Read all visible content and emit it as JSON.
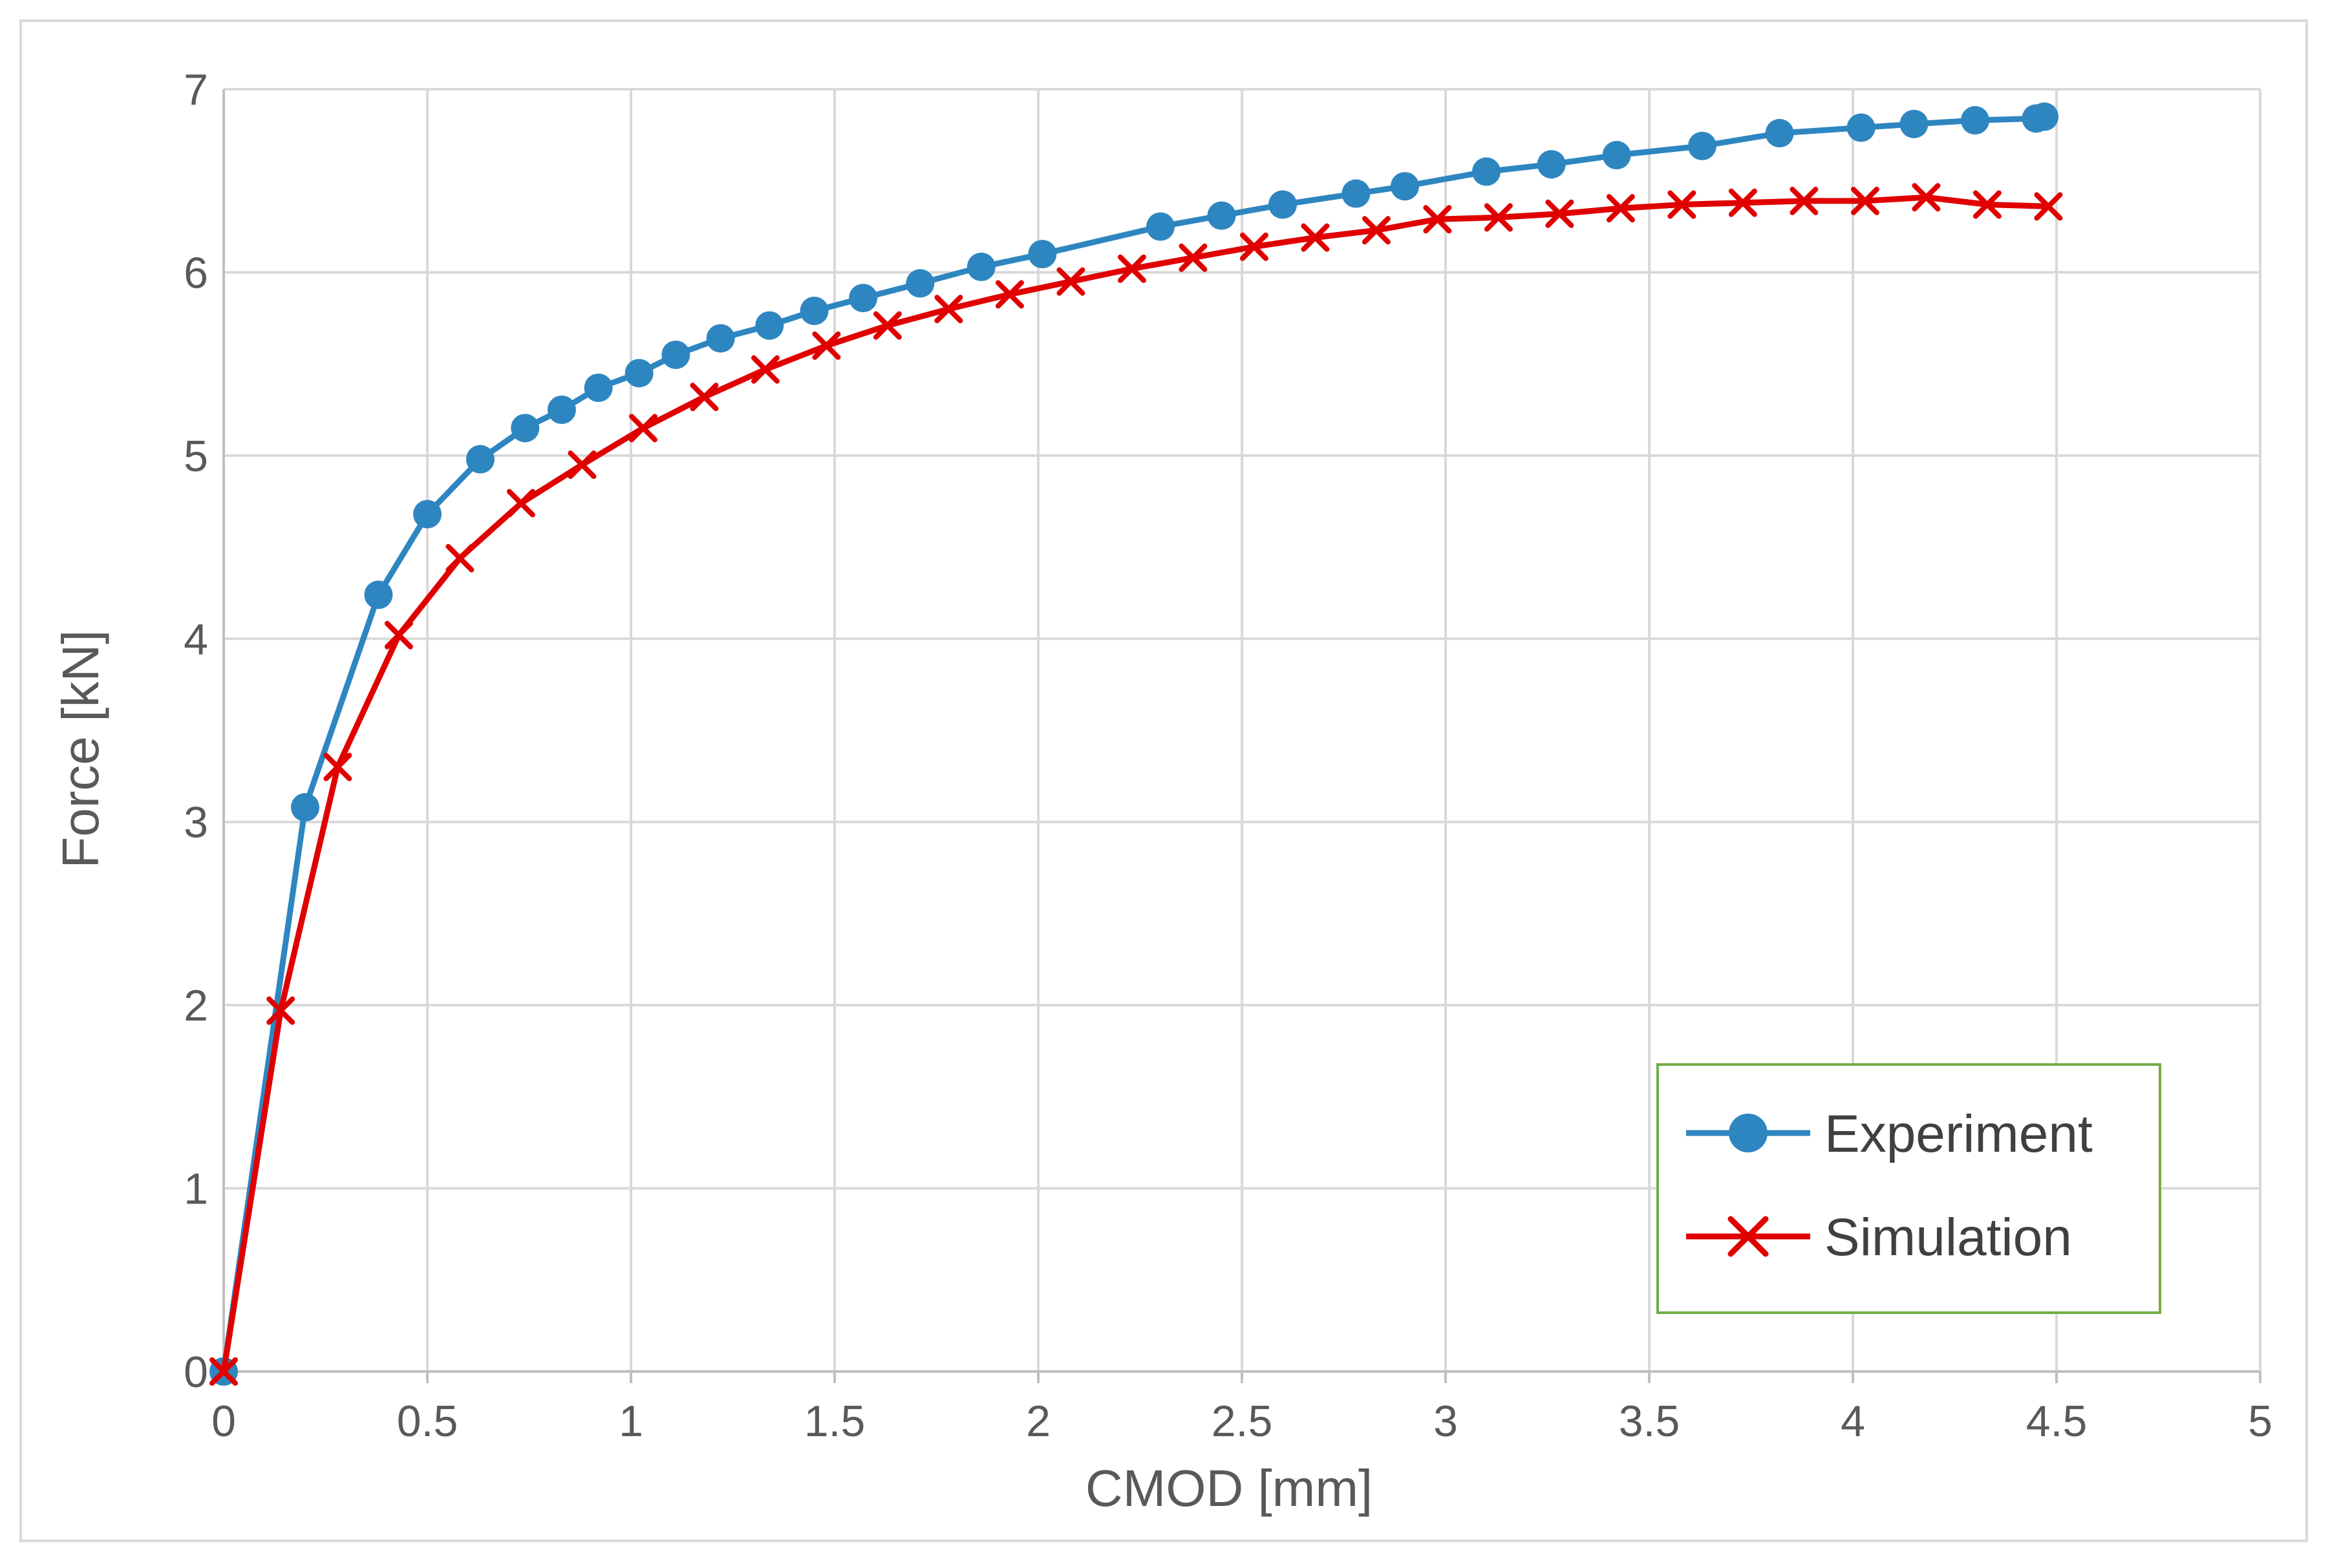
{
  "chart_data": {
    "type": "line",
    "title": "",
    "xlabel": "CMOD [mm]",
    "ylabel": "Force [kN]",
    "xlim": [
      0,
      5
    ],
    "ylim": [
      0,
      7
    ],
    "xticks": [
      "0",
      "0.5",
      "1",
      "1.5",
      "2",
      "2.5",
      "3",
      "3.5",
      "4",
      "4.5",
      "5"
    ],
    "yticks": [
      "0",
      "1",
      "2",
      "3",
      "4",
      "5",
      "6",
      "7"
    ],
    "grid": true,
    "legend_position": "bottom-right",
    "series": [
      {
        "name": "Experiment",
        "color": "#2e86c1",
        "marker": "circle",
        "x": [
          0,
          0.2,
          0.38,
          0.5,
          0.63,
          0.74,
          0.83,
          0.92,
          1.02,
          1.11,
          1.22,
          1.34,
          1.45,
          1.57,
          1.71,
          1.86,
          2.01,
          2.3,
          2.45,
          2.6,
          2.78,
          2.9,
          3.1,
          3.26,
          3.42,
          3.63,
          3.82,
          4.02,
          4.15,
          4.3,
          4.45,
          4.47
        ],
        "y": [
          0,
          3.08,
          4.24,
          4.68,
          4.98,
          5.15,
          5.25,
          5.37,
          5.45,
          5.55,
          5.64,
          5.71,
          5.79,
          5.86,
          5.94,
          6.03,
          6.1,
          6.25,
          6.31,
          6.37,
          6.43,
          6.47,
          6.55,
          6.59,
          6.64,
          6.69,
          6.76,
          6.79,
          6.81,
          6.83,
          6.84,
          6.85
        ]
      },
      {
        "name": "Simulation",
        "color": "#e00000",
        "marker": "x",
        "x": [
          0,
          0.14,
          0.28,
          0.43,
          0.58,
          0.73,
          0.88,
          1.03,
          1.18,
          1.33,
          1.48,
          1.63,
          1.78,
          1.93,
          2.08,
          2.23,
          2.38,
          2.53,
          2.68,
          2.83,
          2.98,
          3.13,
          3.28,
          3.43,
          3.58,
          3.73,
          3.88,
          4.03,
          4.18,
          4.33,
          4.48
        ],
        "y": [
          0,
          1.97,
          3.3,
          4.02,
          4.44,
          4.74,
          4.95,
          5.15,
          5.32,
          5.47,
          5.6,
          5.71,
          5.8,
          5.88,
          5.95,
          6.02,
          6.08,
          6.14,
          6.19,
          6.23,
          6.29,
          6.3,
          6.32,
          6.35,
          6.37,
          6.38,
          6.39,
          6.39,
          6.41,
          6.37,
          6.36
        ]
      }
    ]
  }
}
